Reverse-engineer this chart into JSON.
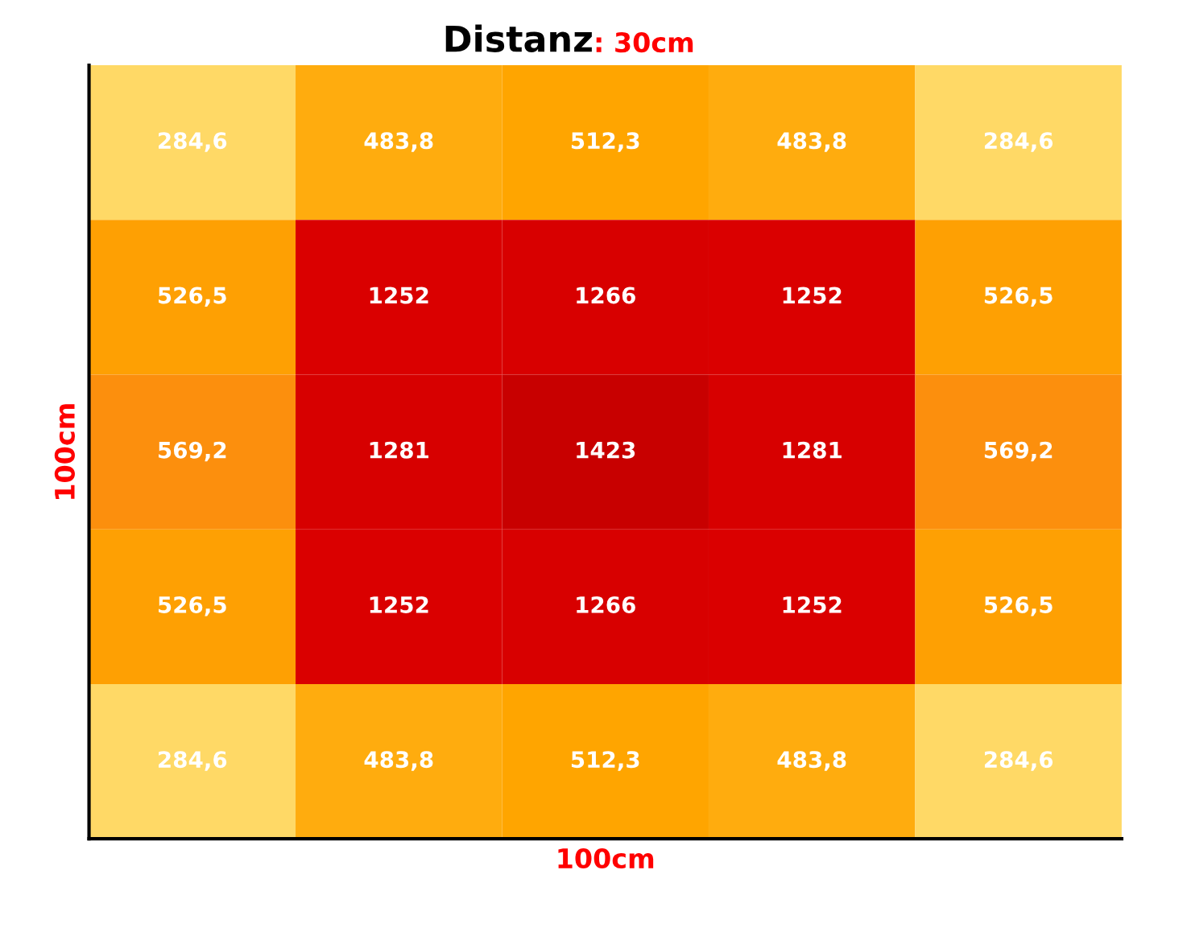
{
  "chart_data": {
    "type": "heatmap",
    "title": "Distanz",
    "subtitle": ": 30cm",
    "xlabel": "100cm",
    "ylabel": "100cm",
    "tick_labels": false,
    "categories": [
      null,
      null,
      null,
      null,
      null
    ],
    "y_categories": [
      null,
      null,
      null,
      null,
      null
    ],
    "colors": [
      "#ffd966",
      "#ffa500",
      "#f25033",
      "#ff0000",
      "#e00000",
      "#c80000"
    ],
    "cells": [
      [
        284.6,
        483.8,
        512.3,
        483.8,
        284.6
      ],
      [
        526.5,
        1252,
        1266,
        1252,
        526.5
      ],
      [
        569.2,
        1281,
        1423,
        1281,
        569.2
      ],
      [
        526.5,
        1252,
        1266,
        1252,
        526.5
      ],
      [
        284.6,
        483.8,
        512.3,
        483.8,
        284.6
      ]
    ],
    "cell_labels": [
      [
        "284,6",
        "483,8",
        "512,3",
        "483,8",
        "284,6"
      ],
      [
        "526,5",
        "1252",
        "1266",
        "1252",
        "526,5"
      ],
      [
        "569,2",
        "1281",
        "1423",
        "1281",
        "569,2"
      ],
      [
        "526,5",
        "1252",
        "1266",
        "1252",
        "526,5"
      ],
      [
        "284,6",
        "483,8",
        "512,3",
        "483,8",
        "284,6"
      ]
    ]
  }
}
